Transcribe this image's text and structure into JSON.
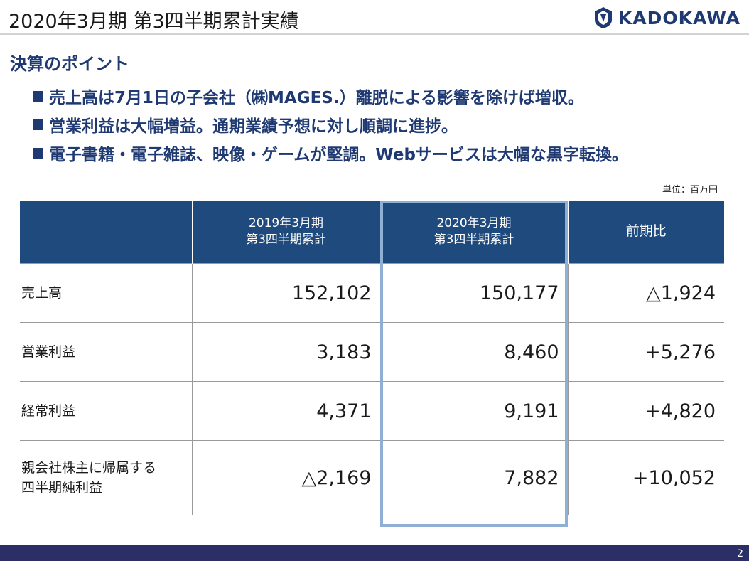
{
  "header": {
    "title": "2020年3月期 第3四半期累計実績",
    "logo_text": "KADOKAWA"
  },
  "section": {
    "title": "決算のポイント",
    "bullets": [
      "売上高は7月1日の子会社（㈱MAGES.）離脱による影響を除けば増収。",
      "営業利益は大幅増益。通期業績予想に対し順調に進捗。",
      "電子書籍・電子雑誌、映像・ゲームが堅調。Webサービスは大幅な黒字転換。"
    ]
  },
  "unit_label": "単位：百万円",
  "table": {
    "headers": [
      "",
      "2019年3月期\n第3四半期累計",
      "2020年3月期\n第3四半期累計",
      "前期比"
    ],
    "rows": [
      {
        "label": "売上高",
        "prev": "152,102",
        "curr": "150,177",
        "diff": "△1,924"
      },
      {
        "label": "営業利益",
        "prev": "3,183",
        "curr": "8,460",
        "diff": "+5,276"
      },
      {
        "label": "経常利益",
        "prev": "4,371",
        "curr": "9,191",
        "diff": "+4,820"
      },
      {
        "label": "親会社株主に帰属する\n四半期純利益",
        "prev": "△2,169",
        "curr": "7,882",
        "diff": "+10,052"
      }
    ]
  },
  "colors": {
    "brand_navy": "#1f3a72",
    "header_fill": "#1f4a7e",
    "highlight_border": "#8fb0d4",
    "footer": "#2b2f66"
  },
  "footer": {
    "page_number": "2"
  }
}
